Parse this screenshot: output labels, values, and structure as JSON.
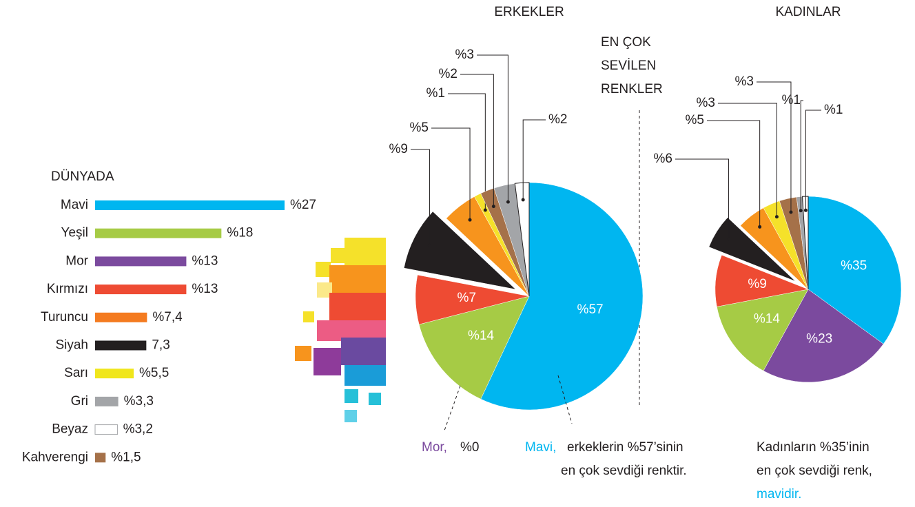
{
  "heading": [
    "EN ÇOK",
    "SEVİLEN",
    "RENKLER"
  ],
  "chart_data": [
    {
      "type": "hbar",
      "title": "DÜNYADA",
      "categories": [
        "Mavi",
        "Yeşil",
        "Mor",
        "Kırmızı",
        "Turuncu",
        "Siyah",
        "Sarı",
        "Gri",
        "Beyaz",
        "Kahverengi"
      ],
      "values": [
        27,
        18,
        13,
        13,
        7.4,
        7.3,
        5.5,
        3.3,
        3.2,
        1.5
      ],
      "value_labels": [
        "%27",
        "%18",
        "%13",
        "%13",
        "%7,4",
        "7,3",
        "%5,5",
        "%3,3",
        "%3,2",
        "%1,5"
      ],
      "colors": [
        "#00b6f0",
        "#a6cb45",
        "#7b4a9e",
        "#ee4b33",
        "#f47b20",
        "#231f20",
        "#f0e61c",
        "#a3a5a8",
        "#ffffff",
        "#a57149"
      ]
    },
    {
      "type": "pie",
      "title": "ERKEKLER",
      "values": [
        57,
        0,
        14,
        7,
        9,
        5,
        1,
        2,
        3,
        2
      ],
      "value_labels": [
        "%57",
        "%0",
        "%14",
        "%7",
        "%9",
        "%5",
        "%1",
        "%2",
        "%3",
        "%2"
      ],
      "colors": [
        "#00b6f0",
        "#7b4a9e",
        "#a6cb45",
        "#ee4b33",
        "#231f20",
        "#f7941d",
        "#f5e12a",
        "#a57149",
        "#a3a5a8",
        "#ffffff"
      ],
      "annotations": [
        [
          "Mor,"
        ],
        [
          "Mavi,",
          "erkeklerin %57’sinin",
          "en çok sevdiği renktir."
        ]
      ]
    },
    {
      "type": "pie",
      "title": "KADINLAR",
      "values": [
        35,
        23,
        14,
        9,
        6,
        5,
        3,
        3,
        1,
        1
      ],
      "value_labels": [
        "%35",
        "%23",
        "%14",
        "%9",
        "%6",
        "%5",
        "%3",
        "%3",
        "%1",
        "%1"
      ],
      "colors": [
        "#00b6f0",
        "#7b4a9e",
        "#a6cb45",
        "#ee4b33",
        "#231f20",
        "#f7941d",
        "#f5e12a",
        "#a57149",
        "#a3a5a8",
        "#ffffff"
      ],
      "annotations": [
        [
          "Kadınların %35’inin",
          "en çok sevdiği renk,",
          "mavidir."
        ]
      ]
    }
  ]
}
